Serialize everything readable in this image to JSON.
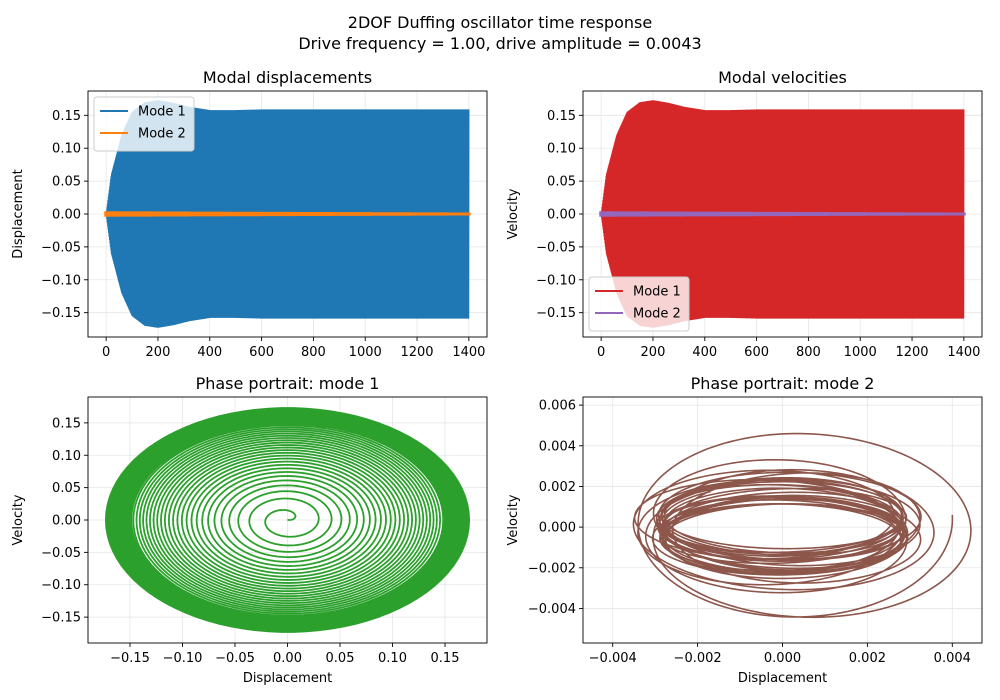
{
  "figure": {
    "title_line1": "2DOF Duffing oscillator time response",
    "title_line2": "Drive frequency = 1.00, drive amplitude = 0.0043"
  },
  "chart_data": [
    {
      "type": "line",
      "title": "Modal displacements",
      "xlabel": "",
      "ylabel": "Displacement",
      "xlim": [
        -70,
        1470
      ],
      "ylim": [
        -0.187,
        0.187
      ],
      "xticks": [
        0,
        200,
        400,
        600,
        800,
        1000,
        1200,
        1400
      ],
      "yticks": [
        -0.15,
        -0.1,
        -0.05,
        0.0,
        0.05,
        0.1,
        0.15
      ],
      "grid": true,
      "legend": "upper-left",
      "series": [
        {
          "name": "Mode 1",
          "color": "#1f77b4",
          "kind": "oscillation_envelope",
          "envelope": {
            "t": [
              0,
              20,
              60,
              100,
              150,
              200,
              260,
              320,
              400,
              500,
              600,
              800,
              1000,
              1200,
              1400
            ],
            "amp": [
              0.0,
              0.06,
              0.12,
              0.155,
              0.17,
              0.173,
              0.169,
              0.163,
              0.158,
              0.158,
              0.159,
              0.159,
              0.159,
              0.159,
              0.159
            ]
          }
        },
        {
          "name": "Mode 2",
          "color": "#ff7f0e",
          "kind": "oscillation_envelope",
          "envelope": {
            "t": [
              0,
              1400
            ],
            "amp": [
              0.004,
              0.002
            ]
          }
        }
      ]
    },
    {
      "type": "line",
      "title": "Modal velocities",
      "xlabel": "",
      "ylabel": "Velocity",
      "xlim": [
        -70,
        1470
      ],
      "ylim": [
        -0.187,
        0.187
      ],
      "xticks": [
        0,
        200,
        400,
        600,
        800,
        1000,
        1200,
        1400
      ],
      "yticks": [
        -0.15,
        -0.1,
        -0.05,
        0.0,
        0.05,
        0.1,
        0.15
      ],
      "grid": true,
      "legend": "lower-left",
      "series": [
        {
          "name": "Mode 1",
          "color": "#d62728",
          "kind": "oscillation_envelope",
          "envelope": {
            "t": [
              0,
              20,
              60,
              100,
              150,
              200,
              260,
              320,
              400,
              500,
              600,
              800,
              1000,
              1200,
              1400
            ],
            "amp": [
              0.0,
              0.06,
              0.12,
              0.155,
              0.17,
              0.173,
              0.169,
              0.163,
              0.158,
              0.158,
              0.159,
              0.159,
              0.159,
              0.159,
              0.159
            ]
          }
        },
        {
          "name": "Mode 2",
          "color": "#9467bd",
          "kind": "oscillation_envelope",
          "envelope": {
            "t": [
              0,
              1400
            ],
            "amp": [
              0.004,
              0.002
            ]
          }
        }
      ]
    },
    {
      "type": "line",
      "title": "Phase portrait: mode 1",
      "xlabel": "Displacement",
      "ylabel": "Velocity",
      "xlim": [
        -0.19,
        0.19
      ],
      "ylim": [
        -0.19,
        0.19
      ],
      "xticks": [
        -0.15,
        -0.1,
        -0.05,
        0.0,
        0.05,
        0.1,
        0.15
      ],
      "yticks": [
        -0.15,
        -0.1,
        -0.05,
        0.0,
        0.05,
        0.1,
        0.15
      ],
      "grid": true,
      "series": [
        {
          "name": "",
          "color": "#2ca02c",
          "kind": "spiral",
          "center": [
            0.0,
            0.0
          ],
          "max_radius_x": 0.173,
          "max_radius_y": 0.173,
          "turns": 34
        }
      ]
    },
    {
      "type": "line",
      "title": "Phase portrait: mode 2",
      "xlabel": "Displacement",
      "ylabel": "Velocity",
      "xlim": [
        -0.0047,
        0.0047
      ],
      "ylim": [
        -0.0057,
        0.0064
      ],
      "xticks": [
        -0.004,
        -0.002,
        0.0,
        0.002,
        0.004
      ],
      "yticks": [
        -0.004,
        -0.002,
        0.0,
        0.002,
        0.004,
        0.006
      ],
      "grid": true,
      "series": [
        {
          "name": "",
          "color": "#8c564b",
          "kind": "orbits",
          "center": [
            0.0,
            0.0
          ],
          "outer_rx": 0.004,
          "outer_ry": 0.0051,
          "inner_rx": 0.0028,
          "inner_ry": 0.0016
        }
      ]
    }
  ]
}
